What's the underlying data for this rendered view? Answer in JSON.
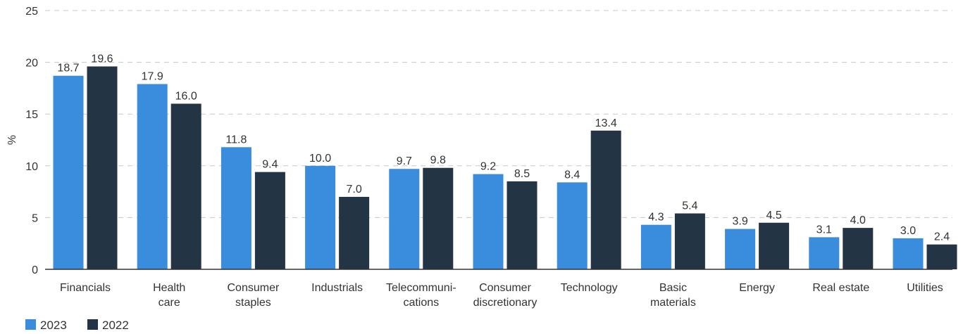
{
  "chart_data": {
    "type": "bar",
    "title": "",
    "xlabel": "",
    "ylabel": "%",
    "ylim": [
      0,
      25
    ],
    "yticks": [
      0,
      5,
      10,
      15,
      20,
      25
    ],
    "grid": true,
    "legend_position": "bottom-left",
    "categories": [
      [
        "Financials"
      ],
      [
        "Health",
        "care"
      ],
      [
        "Consumer",
        "staples"
      ],
      [
        "Industrials"
      ],
      [
        "Telecommuni-",
        "cations"
      ],
      [
        "Consumer",
        "discretionary"
      ],
      [
        "Technology"
      ],
      [
        "Basic",
        "materials"
      ],
      [
        "Energy"
      ],
      [
        "Real estate"
      ],
      [
        "Utilities"
      ]
    ],
    "series": [
      {
        "name": "2023",
        "color": "#3a8ddd",
        "values": [
          18.7,
          17.9,
          11.8,
          10.0,
          9.7,
          9.2,
          8.4,
          4.3,
          3.9,
          3.1,
          3.0
        ],
        "labels": [
          "18.7",
          "17.9",
          "11.8",
          "10.0",
          "9.7",
          "9.2",
          "8.4",
          "4.3",
          "3.9",
          "3.1",
          "3.0"
        ]
      },
      {
        "name": "2022",
        "color": "#233445",
        "values": [
          19.6,
          16.0,
          9.4,
          7.0,
          9.8,
          8.5,
          13.4,
          5.4,
          4.5,
          4.0,
          2.4
        ],
        "labels": [
          "19.6",
          "16.0",
          "9.4",
          "7.0",
          "9.8",
          "8.5",
          "13.4",
          "5.4",
          "4.5",
          "4.0",
          "2.4"
        ]
      }
    ]
  }
}
